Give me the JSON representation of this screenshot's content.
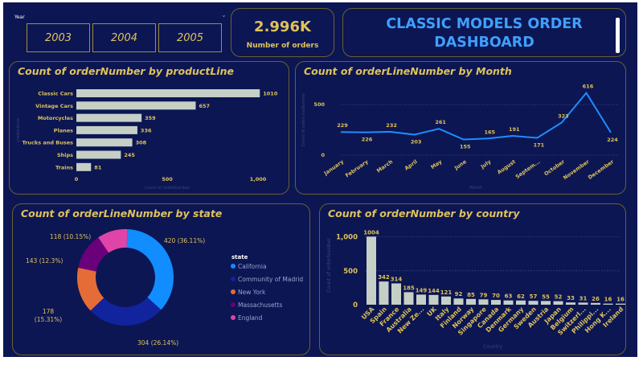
{
  "year_filter": {
    "label": "Year",
    "options": [
      "2003",
      "2004",
      "2005"
    ]
  },
  "kpi": {
    "value": "2.996K",
    "label": "Number of orders"
  },
  "header": {
    "title_line1": "CLASSIC MODELS ORDER",
    "title_line2": "DASHBOARD"
  },
  "colors": {
    "background": "#0c1653",
    "title_gold": "#dfc25a",
    "header_blue": "#3fa0ff",
    "bar": "#c5cfc6",
    "line": "#1f8cff"
  },
  "chart_data": [
    {
      "type": "bar",
      "orientation": "horizontal",
      "title": "Count of orderNumber by productLine",
      "xlabel": "Count of orderNumber",
      "ylabel": "productLine",
      "categories": [
        "Classic Cars",
        "Vintage Cars",
        "Motorcycles",
        "Planes",
        "Trucks and Buses",
        "Ships",
        "Trains"
      ],
      "values": [
        1010,
        657,
        359,
        336,
        308,
        245,
        81
      ],
      "xticks": [
        "0",
        "500",
        "1,000"
      ],
      "xlim": [
        0,
        1000
      ]
    },
    {
      "type": "line",
      "title": "Count of orderLineNumber by Month",
      "xlabel": "Month",
      "ylabel": "Count of orderLineNumber",
      "categories": [
        "January",
        "February",
        "March",
        "April",
        "May",
        "June",
        "July",
        "August",
        "Septem...",
        "October",
        "November",
        "December"
      ],
      "values": [
        229,
        226,
        232,
        203,
        261,
        155,
        165,
        191,
        171,
        323,
        616,
        224
      ],
      "yticks": [
        "0",
        "500"
      ],
      "ylim": [
        0,
        700
      ]
    },
    {
      "type": "pie",
      "title": "Count of orderLineNumber by state",
      "legend_title": "state",
      "legend_position": "right",
      "slices": [
        {
          "label": "California",
          "value": 420,
          "text": "420 (36.11%)",
          "color": "#118dff"
        },
        {
          "label": "Community of Madrid",
          "value": 304,
          "text": "304 (26.14%)",
          "color": "#12239e"
        },
        {
          "label": "New York",
          "value": 178,
          "text1": "178",
          "text2": "(15.31%)",
          "color": "#e66c37"
        },
        {
          "label": "Massachusetts",
          "value": 143,
          "text": "143 (12.3%)",
          "color": "#6b007b"
        },
        {
          "label": "England",
          "value": 118,
          "text": "118 (10.15%)",
          "color": "#e044a7"
        }
      ]
    },
    {
      "type": "bar",
      "title": "Count of orderNumber by country",
      "xlabel": "Country",
      "ylabel": "Count of orderNumber",
      "categories": [
        "USA",
        "Spain",
        "France",
        "Australia",
        "New Ze...",
        "UK",
        "Italy",
        "Finland",
        "Norway",
        "Singapore",
        "Canada",
        "Denmark",
        "Germany",
        "Sweden",
        "Austria",
        "Japan",
        "Belgium",
        "Switzerl...",
        "Philippi...",
        "Hong K...",
        "Ireland"
      ],
      "values": [
        1004,
        342,
        314,
        185,
        149,
        144,
        121,
        92,
        85,
        79,
        70,
        63,
        62,
        57,
        55,
        52,
        33,
        31,
        26,
        16,
        16
      ],
      "yticks": [
        "0",
        "500",
        "1,000"
      ],
      "ylim": [
        0,
        1150
      ]
    }
  ]
}
